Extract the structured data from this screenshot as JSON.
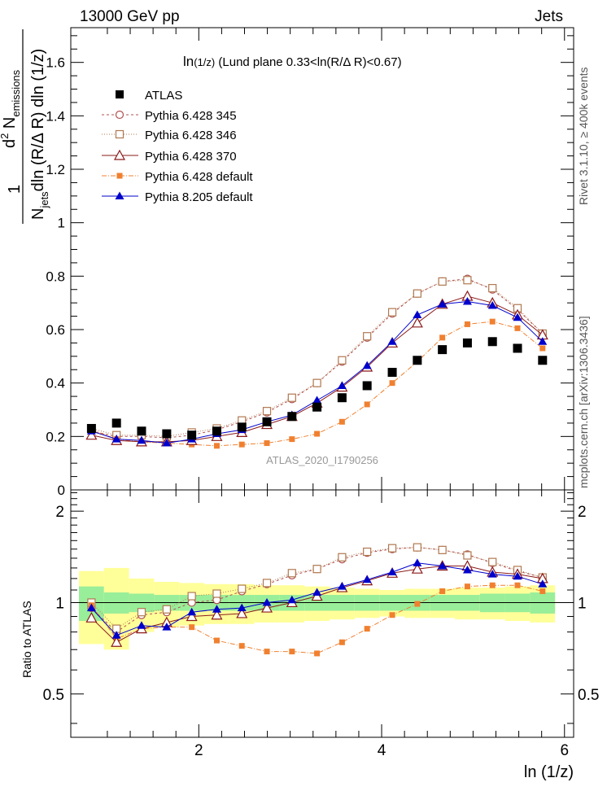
{
  "header": {
    "left": "13000 GeV pp",
    "right": "Jets"
  },
  "side_labels": {
    "rivet": "Rivet 3.1.10, ≥ 400k events",
    "mcplots": "mcplots.cern.ch [arXiv:1306.3436]"
  },
  "chart_data": [
    {
      "type": "scatter",
      "panel": "main",
      "title": "ln(1/z) (Lund plane 0.33<ln(R/Δ R)<0.67)",
      "title_main": "ln",
      "title_paren": "(1/z)",
      "title_rest": " (Lund plane 0.33<ln(R/Δ R)<0.67)",
      "ylabel": {
        "numerator": "1",
        "d2": "d",
        "sup": "2",
        "n": " N",
        "sub": "emissions",
        "den_n": "N",
        "den_sub": "jets",
        "den_rest": "dln (R/Δ R) dln (1/z)"
      },
      "watermark": "ATLAS_2020_I1790256",
      "xlim": [
        0.6,
        6.1
      ],
      "ylim": [
        0,
        1.73
      ],
      "yticks": [
        0,
        0.2,
        0.4,
        0.6,
        0.8,
        1,
        1.2,
        1.4,
        1.6
      ],
      "ytick_labels": [
        "0",
        "0.2",
        "0.4",
        "0.6",
        "0.8",
        "1",
        "1.2",
        "1.4",
        "1.6"
      ],
      "x": [
        0.826,
        1.1,
        1.374,
        1.649,
        1.923,
        2.197,
        2.471,
        2.745,
        3.019,
        3.293,
        3.567,
        3.841,
        4.116,
        4.39,
        4.664,
        4.938,
        5.212,
        5.486,
        5.76
      ],
      "series": [
        {
          "name": "ATLAS",
          "key": "atlas",
          "color": "#000000",
          "style": "data",
          "values": [
            0.23,
            0.25,
            0.22,
            0.21,
            0.205,
            0.22,
            0.235,
            0.255,
            0.275,
            0.31,
            0.345,
            0.39,
            0.44,
            0.485,
            0.525,
            0.55,
            0.555,
            0.53,
            0.485
          ]
        },
        {
          "name": "Pythia 6.428 345",
          "key": "p345",
          "color": "#b05050",
          "style": "open-circle",
          "dash": "3,3",
          "values": [
            0.22,
            0.2,
            0.2,
            0.195,
            0.205,
            0.225,
            0.255,
            0.29,
            0.34,
            0.4,
            0.48,
            0.57,
            0.66,
            0.735,
            0.78,
            0.79,
            0.75,
            0.675,
            0.585
          ]
        },
        {
          "name": "Pythia 6.428 346",
          "key": "p346",
          "color": "#b07850",
          "style": "open-square",
          "dash": "1,2",
          "values": [
            0.23,
            0.205,
            0.205,
            0.2,
            0.215,
            0.23,
            0.26,
            0.295,
            0.345,
            0.4,
            0.485,
            0.575,
            0.665,
            0.735,
            0.78,
            0.785,
            0.755,
            0.68,
            0.585
          ]
        },
        {
          "name": "Pythia 6.428 370",
          "key": "p370",
          "color": "#8b1a1a",
          "style": "open-triangle",
          "dash": "",
          "values": [
            0.205,
            0.185,
            0.18,
            0.18,
            0.185,
            0.2,
            0.215,
            0.245,
            0.275,
            0.325,
            0.385,
            0.46,
            0.55,
            0.625,
            0.695,
            0.725,
            0.7,
            0.655,
            0.58
          ]
        },
        {
          "name": "Pythia 6.428 default",
          "key": "p6def",
          "color": "#f08030",
          "style": "filled-square",
          "dash": "6,2,1,2",
          "values": [
            0.225,
            0.19,
            0.18,
            0.175,
            0.17,
            0.165,
            0.17,
            0.175,
            0.19,
            0.21,
            0.255,
            0.32,
            0.4,
            0.48,
            0.57,
            0.62,
            0.63,
            0.605,
            0.53
          ]
        },
        {
          "name": "Pythia 8.205 default",
          "key": "p8def",
          "color": "#0000cc",
          "style": "filled-triangle",
          "dash": "",
          "values": [
            0.22,
            0.19,
            0.185,
            0.175,
            0.19,
            0.21,
            0.225,
            0.255,
            0.28,
            0.335,
            0.39,
            0.465,
            0.555,
            0.655,
            0.695,
            0.705,
            0.69,
            0.645,
            0.555
          ]
        }
      ]
    },
    {
      "type": "scatter",
      "panel": "ratio",
      "ylabel": "Ratio to ATLAS",
      "xlabel": "ln (1/z)",
      "xlim": [
        0.6,
        6.1
      ],
      "ylim": [
        0.36,
        2.35
      ],
      "yscale": "log",
      "yticks": [
        0.5,
        1,
        2
      ],
      "ytick_labels": [
        "0.5",
        "1",
        "2"
      ],
      "xticks": [
        2,
        4,
        6
      ],
      "xtick_labels": [
        "2",
        "4",
        "6"
      ],
      "band_inner": [
        0.13,
        0.08,
        0.07,
        0.06,
        0.06,
        0.06,
        0.06,
        0.06,
        0.06,
        0.06,
        0.06,
        0.06,
        0.06,
        0.06,
        0.06,
        0.06,
        0.07,
        0.07,
        0.08
      ],
      "band_outer": [
        0.27,
        0.3,
        0.2,
        0.17,
        0.16,
        0.15,
        0.15,
        0.14,
        0.14,
        0.13,
        0.12,
        0.11,
        0.1,
        0.11,
        0.11,
        0.12,
        0.12,
        0.13,
        0.14
      ],
      "series": [
        {
          "name": "Pythia 6.428 345",
          "values": [
            0.96,
            0.8,
            0.91,
            0.93,
            1.0,
            1.02,
            1.09,
            1.15,
            1.23,
            1.29,
            1.39,
            1.46,
            1.5,
            1.52,
            1.49,
            1.44,
            1.35,
            1.27,
            1.21
          ]
        },
        {
          "name": "Pythia 6.428 346",
          "values": [
            1.0,
            0.82,
            0.93,
            0.95,
            1.05,
            1.07,
            1.11,
            1.16,
            1.25,
            1.29,
            1.41,
            1.47,
            1.51,
            1.52,
            1.49,
            1.43,
            1.36,
            1.28,
            1.21
          ]
        },
        {
          "name": "Pythia 6.428 370",
          "values": [
            0.89,
            0.74,
            0.82,
            0.86,
            0.9,
            0.91,
            0.92,
            0.96,
            1.0,
            1.05,
            1.12,
            1.18,
            1.25,
            1.29,
            1.32,
            1.32,
            1.26,
            1.24,
            1.2
          ]
        },
        {
          "name": "Pythia 6.428 default",
          "values": [
            0.98,
            0.76,
            0.82,
            0.83,
            0.83,
            0.75,
            0.72,
            0.69,
            0.69,
            0.68,
            0.74,
            0.82,
            0.91,
            0.99,
            1.09,
            1.13,
            1.14,
            1.14,
            1.09
          ]
        },
        {
          "name": "Pythia 8.205 default",
          "values": [
            0.96,
            0.78,
            0.84,
            0.83,
            0.93,
            0.95,
            0.96,
            1.0,
            1.02,
            1.08,
            1.13,
            1.19,
            1.26,
            1.35,
            1.32,
            1.28,
            1.24,
            1.22,
            1.15
          ]
        }
      ]
    }
  ]
}
